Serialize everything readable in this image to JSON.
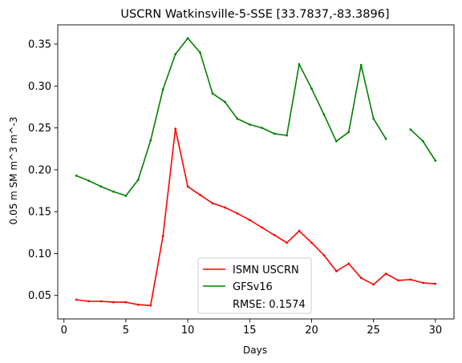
{
  "chart_data": {
    "type": "line",
    "title": "USCRN Watkinsville-5-SSE [33.7837,-83.3896]",
    "xlabel": "Days",
    "ylabel": "0.05 m SM m^3 m^-3",
    "xlim": [
      -0.5,
      31.5
    ],
    "ylim": [
      0.022,
      0.373
    ],
    "xticks": [
      0,
      5,
      10,
      15,
      20,
      25,
      30
    ],
    "xtick_labels": [
      "0",
      "5",
      "10",
      "15",
      "20",
      "25",
      "30"
    ],
    "yticks": [
      0.05,
      0.1,
      0.15,
      0.2,
      0.25,
      0.3,
      0.35
    ],
    "ytick_labels": [
      "0.05",
      "0.10",
      "0.15",
      "0.20",
      "0.25",
      "0.30",
      "0.35"
    ],
    "grid": false,
    "legend_position": "bottom-center",
    "series": [
      {
        "name": "ISMN USCRN",
        "color": "#ff0000",
        "x": [
          1,
          2,
          3,
          4,
          5,
          6,
          7,
          8,
          9,
          10,
          11,
          12,
          13,
          14,
          15,
          16,
          17,
          18,
          19,
          20,
          21,
          22,
          23,
          24,
          25,
          26,
          27,
          28,
          29,
          30
        ],
        "y": [
          0.045,
          0.043,
          0.043,
          0.042,
          0.042,
          0.039,
          0.038,
          0.121,
          0.249,
          0.18,
          0.17,
          0.16,
          0.155,
          0.148,
          0.14,
          0.131,
          0.122,
          0.113,
          0.127,
          0.113,
          0.098,
          0.079,
          0.088,
          0.071,
          0.063,
          0.076,
          0.068,
          0.069,
          0.065,
          0.064
        ]
      },
      {
        "name": "GFSv16",
        "color": "#008000",
        "x": [
          1,
          2,
          3,
          4,
          5,
          6,
          7,
          8,
          9,
          10,
          11,
          12,
          13,
          14,
          15,
          16,
          17,
          18,
          19,
          20,
          21,
          22,
          23,
          24,
          25,
          26,
          28,
          29,
          30
        ],
        "y": [
          0.193,
          0.187,
          0.18,
          0.174,
          0.169,
          0.188,
          0.235,
          0.296,
          0.338,
          0.357,
          0.34,
          0.291,
          0.281,
          0.261,
          0.254,
          0.25,
          0.243,
          0.241,
          0.326,
          0.297,
          0.266,
          0.234,
          0.245,
          0.325,
          0.261,
          0.237,
          0.248,
          0.234,
          0.211
        ],
        "segments": [
          [
            1,
            26
          ],
          [
            28,
            30
          ]
        ]
      }
    ],
    "annotations": [
      {
        "text": "RMSE: 0.1574",
        "location": "legend"
      }
    ]
  }
}
